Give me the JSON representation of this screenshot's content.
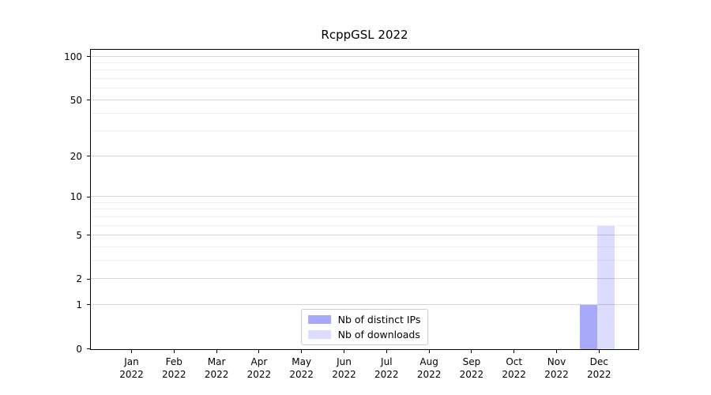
{
  "figure": {
    "title": "RcppGSL 2022"
  },
  "chart_data": {
    "type": "bar",
    "title": "RcppGSL 2022",
    "categories": [
      "Jan",
      "Feb",
      "Mar",
      "Apr",
      "May",
      "Jun",
      "Jul",
      "Aug",
      "Sep",
      "Oct",
      "Nov",
      "Dec"
    ],
    "category_year": "2022",
    "series": [
      {
        "name": "Nb of distinct IPs",
        "color": "rgba(10,10,245,0.35)",
        "values": [
          0,
          0,
          0,
          0,
          0,
          0,
          0,
          0,
          0,
          0,
          0,
          1
        ]
      },
      {
        "name": "Nb of downloads",
        "color": "rgba(10,10,245,0.14)",
        "values": [
          0,
          0,
          0,
          0,
          0,
          0,
          0,
          0,
          0,
          0,
          0,
          6
        ]
      }
    ],
    "xlabel": "",
    "ylabel": "",
    "scale": "log1p",
    "ylim": [
      0,
      111
    ],
    "yticks": [
      0,
      1,
      2,
      5,
      10,
      20,
      50,
      100
    ],
    "minor_gridlines": [
      3,
      4,
      6,
      7,
      8,
      9,
      30,
      40,
      60,
      70,
      80,
      90
    ],
    "grid": "horizontal",
    "legend_position": "bottom-center",
    "colors": {
      "grid_major": "#d8d8d8",
      "grid_minor": "#f0f0f0",
      "spine": "#000000",
      "bar_distinct_ips": "#a8a8f8",
      "bar_downloads": "#dcdcfa"
    }
  }
}
